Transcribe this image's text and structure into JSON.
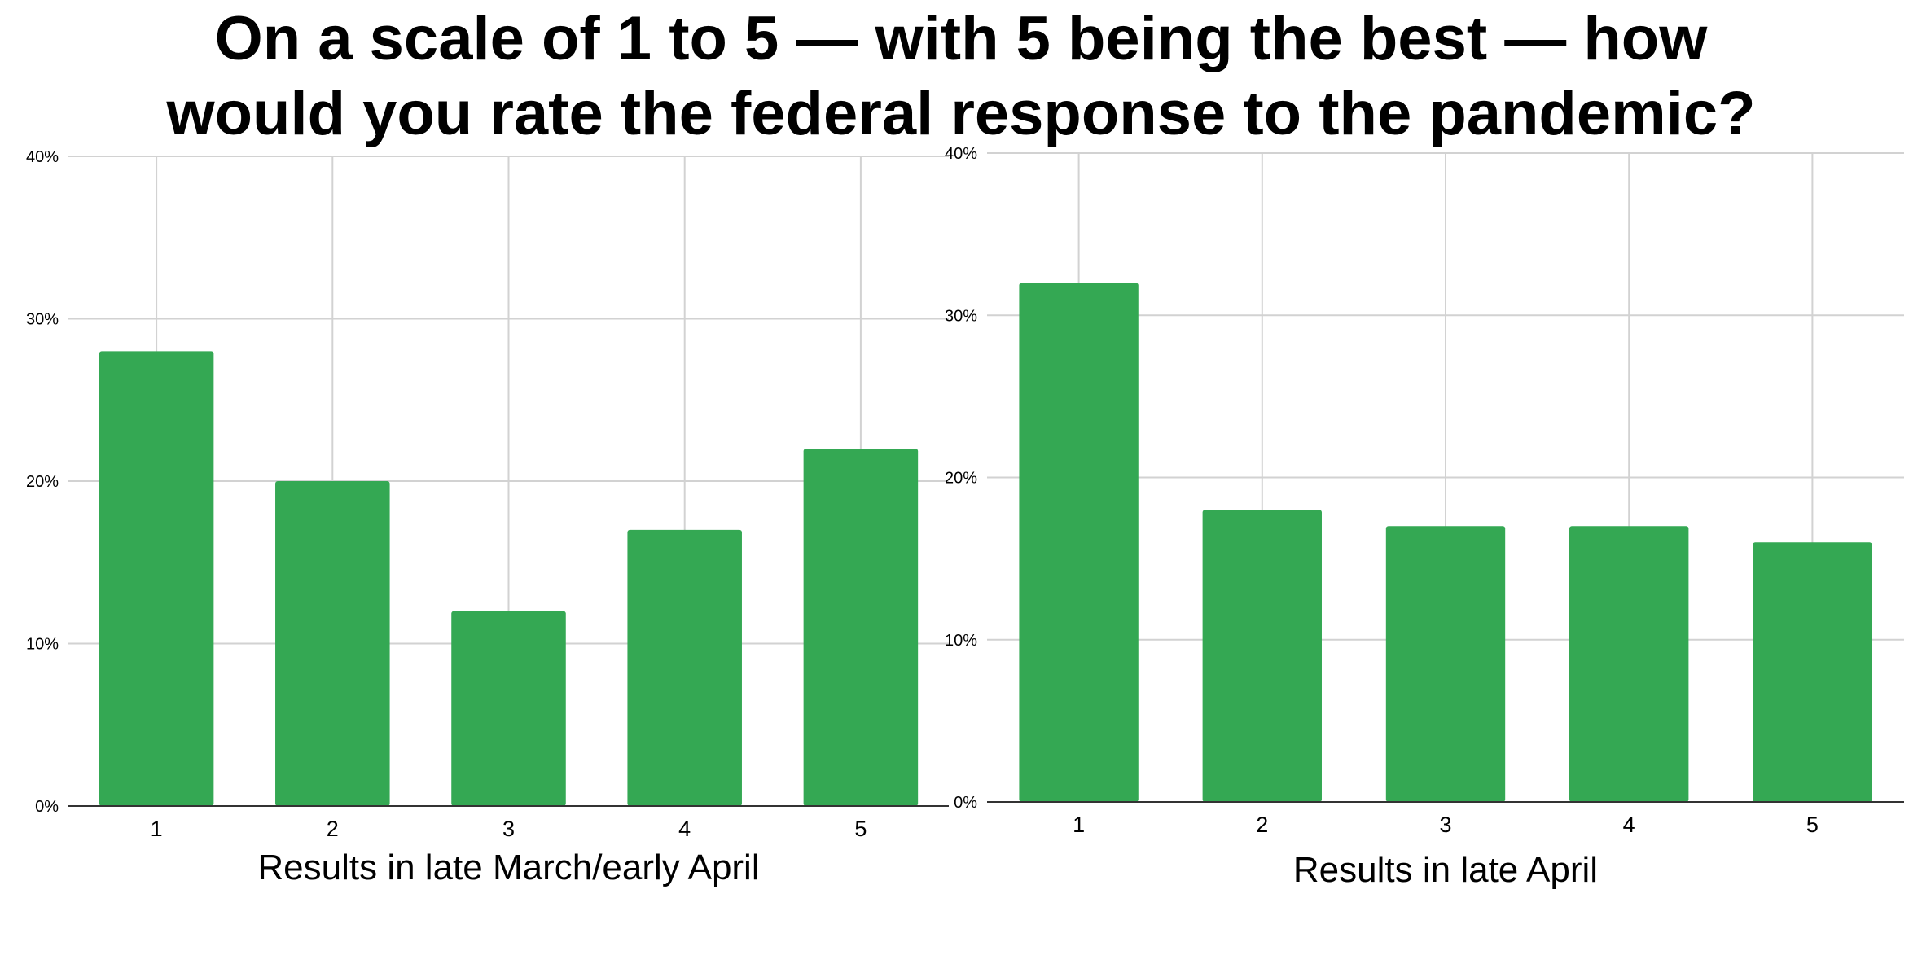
{
  "title_lines": [
    "On a scale of 1 to 5 — with 5 being the best — how",
    "would you rate the federal response to the pandemic?"
  ],
  "chart_data": [
    {
      "type": "bar",
      "categories": [
        "1",
        "2",
        "3",
        "4",
        "5"
      ],
      "values": [
        28,
        20,
        12,
        17,
        22
      ],
      "unit": "%",
      "xlabel": "Results in late March/early April",
      "ylabel": "",
      "ylim": [
        0,
        40
      ],
      "yticks": [
        "0%",
        "10%",
        "20%",
        "30%",
        "40%"
      ],
      "grid": true,
      "legend": "none",
      "bar_color": "#34a853"
    },
    {
      "type": "bar",
      "categories": [
        "1",
        "2",
        "3",
        "4",
        "5"
      ],
      "values": [
        32,
        18,
        17,
        17,
        16
      ],
      "unit": "%",
      "xlabel": "Results in late April",
      "ylabel": "",
      "ylim": [
        0,
        40
      ],
      "yticks": [
        "0%",
        "10%",
        "20%",
        "30%",
        "40%"
      ],
      "grid": true,
      "legend": "none",
      "bar_color": "#34a853"
    }
  ]
}
